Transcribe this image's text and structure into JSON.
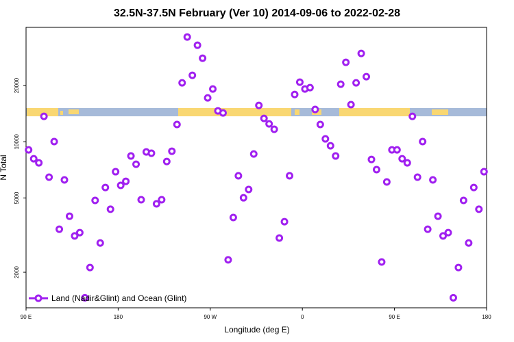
{
  "chart_data": {
    "type": "scatter",
    "title": "32.5N-37.5N February (Ver 10)   2014-09-06 to 2022-02-28",
    "x_label": "Longitude (deg E)",
    "y_label": "N Total",
    "log_y": true,
    "legend": "lower left",
    "xlim": [
      90,
      540
    ],
    "xticks": [
      {
        "value": 90,
        "label": "90 E"
      },
      {
        "value": 180,
        "label": "180"
      },
      {
        "value": 270,
        "label": "90 W"
      },
      {
        "value": 360,
        "label": "0"
      },
      {
        "value": 450,
        "label": "90 E"
      },
      {
        "value": 540,
        "label": "180"
      }
    ],
    "ylim": [
      1290,
      41000
    ],
    "yticks": [
      2000,
      5000,
      10000,
      20000
    ],
    "x": [
      92.5,
      97.5,
      102.5,
      107.5,
      112.5,
      117.5,
      122.5,
      127.5,
      132.5,
      137.5,
      142.5,
      147.5,
      152.5,
      157.5,
      162.5,
      167.5,
      172.5,
      177.5,
      182.5,
      187.5,
      192.5,
      197.5,
      202.5,
      207.5,
      212.5,
      217.5,
      222.5,
      227.5,
      232.5,
      237.5,
      242.5,
      247.5,
      252.5,
      257.5,
      262.5,
      267.5,
      272.5,
      277.5,
      282.5,
      287.5,
      292.5,
      297.5,
      302.5,
      307.5,
      312.5,
      317.5,
      322.5,
      327.5,
      332.5,
      337.5,
      342.5,
      347.5,
      352.5,
      357.5,
      362.5,
      367.5,
      372.5,
      377.5,
      382.5,
      387.5,
      392.5,
      397.5,
      402.5,
      407.5,
      412.5,
      417.5,
      422.5,
      427.5,
      432.5,
      437.5,
      442.5,
      447.5,
      452.5,
      457.5,
      462.5,
      467.5,
      472.5,
      477.5,
      482.5,
      487.5,
      492.5,
      497.5,
      502.5,
      507.5,
      512.5,
      517.5,
      522.5,
      527.5,
      532.5,
      537.5
    ],
    "series": [
      {
        "name": "Land (Nadir&Glint) and Ocean (Glint)",
        "color": "#a020f0",
        "values": [
          9050,
          8110,
          7710,
          13680,
          6460,
          10020,
          3400,
          6250,
          3990,
          3130,
          3260,
          1460,
          2120,
          4850,
          2870,
          5690,
          4350,
          6910,
          5840,
          6140,
          8390,
          7580,
          4890,
          8820,
          8680,
          4650,
          4890,
          7840,
          8900,
          12370,
          20680,
          36400,
          22700,
          32900,
          28020,
          17180,
          19170,
          14640,
          14270,
          2330,
          3930,
          6570,
          5010,
          5550,
          8600,
          15660,
          13340,
          12470,
          11660,
          3050,
          3730,
          6570,
          17920,
          20860,
          19170,
          19500,
          14890,
          12370,
          10360,
          9520,
          8390,
          20340,
          26640,
          15800,
          20680,
          29720,
          22320,
          8040,
          7090,
          2270,
          6090,
          9050,
          9050,
          8110,
          7710,
          13680,
          6460,
          10020,
          3400,
          6250,
          3990,
          3130,
          3260,
          1460,
          2120,
          4850,
          2870,
          5690,
          4350,
          6910
        ]
      }
    ]
  }
}
